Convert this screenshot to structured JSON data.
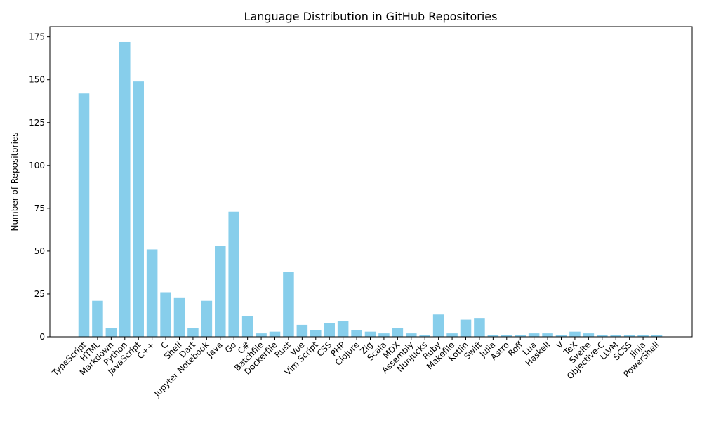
{
  "chart_data": {
    "type": "bar",
    "title": "Language Distribution in GitHub Repositories",
    "xlabel": "",
    "ylabel": "Number of Repositories",
    "ylim": [
      0,
      181
    ],
    "yticks": [
      0,
      25,
      50,
      75,
      100,
      125,
      150,
      175
    ],
    "grid": false,
    "bar_color": "#87ceeb",
    "categories": [
      "TypeScript",
      "HTML",
      "Markdown",
      "Python",
      "JavaScript",
      "C++",
      "C",
      "Shell",
      "Dart",
      "Jupyter Notebook",
      "Java",
      "Go",
      "C#",
      "Batchfile",
      "Dockerfile",
      "Rust",
      "Vue",
      "Vim Script",
      "CSS",
      "PHP",
      "Clojure",
      "Zig",
      "Scala",
      "MDX",
      "Assembly",
      "Nunjucks",
      "Ruby",
      "Makefile",
      "Kotlin",
      "Swift",
      "Julia",
      "Astro",
      "Roff",
      "Lua",
      "Haskell",
      "V",
      "TeX",
      "Svelte",
      "Objective-C",
      "LLVM",
      "SCSS",
      "Jinja",
      "PowerShell"
    ],
    "values": [
      142,
      21,
      5,
      172,
      149,
      51,
      26,
      23,
      5,
      21,
      53,
      73,
      12,
      2,
      3,
      38,
      7,
      4,
      8,
      9,
      4,
      3,
      2,
      5,
      2,
      1,
      13,
      2,
      10,
      11,
      1,
      1,
      1,
      2,
      2,
      1,
      3,
      2,
      1,
      1,
      1,
      1,
      1
    ]
  }
}
